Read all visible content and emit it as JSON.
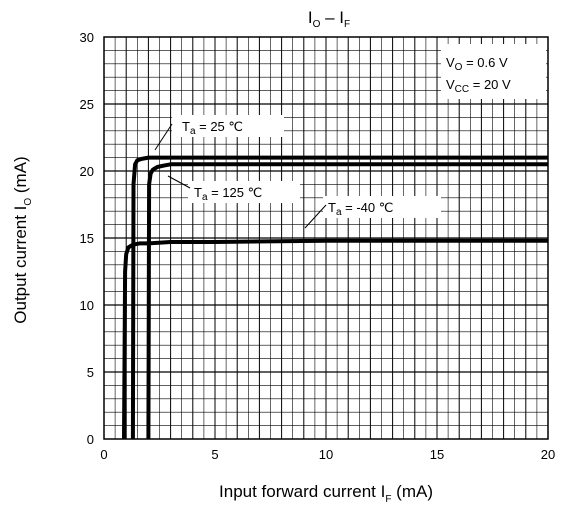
{
  "chart_data": {
    "type": "line",
    "title": {
      "main": "I",
      "main_sub": "O",
      "sep": " – ",
      "second": "I",
      "second_sub": "F"
    },
    "xlabel": {
      "text": "Input forward current  I",
      "sub": "F",
      "unit": "  (mA)"
    },
    "ylabel": {
      "text": "Output current  I",
      "sub": "O",
      "unit": "  (mA)"
    },
    "xlim": [
      0,
      20
    ],
    "ylim": [
      0,
      30
    ],
    "xticks": [
      0,
      5,
      10,
      15,
      20
    ],
    "yticks": [
      0,
      5,
      10,
      15,
      20,
      25,
      30
    ],
    "grid": true,
    "conditions": [
      {
        "prefix": "V",
        "sub": "O",
        "rest": " = 0.6 V"
      },
      {
        "prefix": "V",
        "sub": "CC",
        "rest": " = 20 V"
      }
    ],
    "series": [
      {
        "name": {
          "prefix": "T",
          "sub": "a",
          "rest": " = 25 ℃"
        },
        "x": [
          1.3,
          1.33,
          1.4,
          1.5,
          1.7,
          2.0,
          2.5,
          3.0,
          5,
          10,
          15,
          20
        ],
        "y": [
          0,
          19.0,
          20.5,
          20.8,
          20.9,
          21.0,
          21.0,
          21.0,
          21.0,
          21.0,
          21.0,
          21.0
        ]
      },
      {
        "name": {
          "prefix": "T",
          "sub": "a",
          "rest": " = 125 ℃"
        },
        "x": [
          2.0,
          2.03,
          2.1,
          2.2,
          2.4,
          2.7,
          3.0,
          4.0,
          5,
          10,
          15,
          20
        ],
        "y": [
          0,
          19.0,
          19.8,
          20.1,
          20.3,
          20.4,
          20.5,
          20.5,
          20.5,
          20.5,
          20.5,
          20.5
        ]
      },
      {
        "name": {
          "prefix": "T",
          "sub": "a",
          "rest": " = -40 ℃"
        },
        "x": [
          0.9,
          0.95,
          1.0,
          1.1,
          1.3,
          1.6,
          2.0,
          3.0,
          5,
          10,
          15,
          20
        ],
        "y": [
          0,
          12.5,
          13.8,
          14.3,
          14.5,
          14.6,
          14.6,
          14.7,
          14.7,
          14.8,
          14.8,
          14.8
        ]
      }
    ]
  }
}
